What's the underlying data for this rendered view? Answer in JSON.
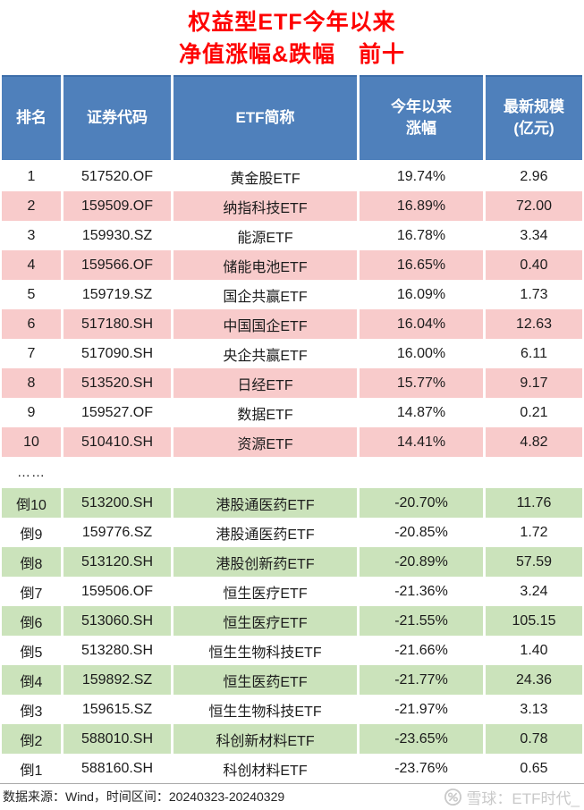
{
  "chart_data": {
    "type": "table",
    "title_lines": [
      "权益型ETF今年以来",
      "净值涨幅&跌幅　前十"
    ],
    "columns": [
      {
        "lines": [
          "排名"
        ]
      },
      {
        "lines": [
          "证券代码"
        ]
      },
      {
        "lines": [
          "ETF简称"
        ]
      },
      {
        "lines": [
          "今年以来",
          "涨幅"
        ]
      },
      {
        "lines": [
          "最新规模",
          "(亿元)"
        ]
      }
    ],
    "gainers": [
      {
        "rank": "1",
        "code": "517520.OF",
        "name": "黄金股ETF",
        "change": "19.74%",
        "scale": "2.96"
      },
      {
        "rank": "2",
        "code": "159509.OF",
        "name": "纳指科技ETF",
        "change": "16.89%",
        "scale": "72.00"
      },
      {
        "rank": "3",
        "code": "159930.SZ",
        "name": "能源ETF",
        "change": "16.78%",
        "scale": "3.34"
      },
      {
        "rank": "4",
        "code": "159566.OF",
        "name": "储能电池ETF",
        "change": "16.65%",
        "scale": "0.40"
      },
      {
        "rank": "5",
        "code": "159719.SZ",
        "name": "国企共赢ETF",
        "change": "16.09%",
        "scale": "1.73"
      },
      {
        "rank": "6",
        "code": "517180.SH",
        "name": "中国国企ETF",
        "change": "16.04%",
        "scale": "12.63"
      },
      {
        "rank": "7",
        "code": "517090.SH",
        "name": "央企共赢ETF",
        "change": "16.00%",
        "scale": "6.11"
      },
      {
        "rank": "8",
        "code": "513520.SH",
        "name": "日经ETF",
        "change": "15.77%",
        "scale": "9.17"
      },
      {
        "rank": "9",
        "code": "159527.OF",
        "name": "数据ETF",
        "change": "14.87%",
        "scale": "0.21"
      },
      {
        "rank": "10",
        "code": "510410.SH",
        "name": "资源ETF",
        "change": "14.41%",
        "scale": "4.82"
      }
    ],
    "separator": "……",
    "losers": [
      {
        "rank": "倒10",
        "code": "513200.SH",
        "name": "港股通医药ETF",
        "change": "-20.70%",
        "scale": "11.76"
      },
      {
        "rank": "倒9",
        "code": "159776.SZ",
        "name": "港股通医药ETF",
        "change": "-20.85%",
        "scale": "1.72"
      },
      {
        "rank": "倒8",
        "code": "513120.SH",
        "name": "港股创新药ETF",
        "change": "-20.89%",
        "scale": "57.59"
      },
      {
        "rank": "倒7",
        "code": "159506.OF",
        "name": "恒生医疗ETF",
        "change": "-21.36%",
        "scale": "3.24"
      },
      {
        "rank": "倒6",
        "code": "513060.SH",
        "name": "恒生医疗ETF",
        "change": "-21.55%",
        "scale": "105.15"
      },
      {
        "rank": "倒5",
        "code": "513280.SH",
        "name": "恒生生物科技ETF",
        "change": "-21.66%",
        "scale": "1.40"
      },
      {
        "rank": "倒4",
        "code": "159892.SZ",
        "name": "恒生医药ETF",
        "change": "-21.77%",
        "scale": "24.36"
      },
      {
        "rank": "倒3",
        "code": "159615.SZ",
        "name": "恒生生物科技ETF",
        "change": "-21.97%",
        "scale": "3.13"
      },
      {
        "rank": "倒2",
        "code": "588010.SH",
        "name": "科创新材料ETF",
        "change": "-23.65%",
        "scale": "0.78"
      },
      {
        "rank": "倒1",
        "code": "588160.SH",
        "name": "科创材料ETF",
        "change": "-23.76%",
        "scale": "0.65"
      }
    ],
    "footer_source": "数据来源：Wind，时间区间：20240323-20240329",
    "watermark": "雪球：ETF时代_",
    "colors": {
      "header_bg": "#4f80bb",
      "gainer_bg": "#f8cbcb",
      "loser_bg": "#cbe3bb",
      "title_color": "#fe0000",
      "watermark_color": "#c9c9c9"
    }
  }
}
